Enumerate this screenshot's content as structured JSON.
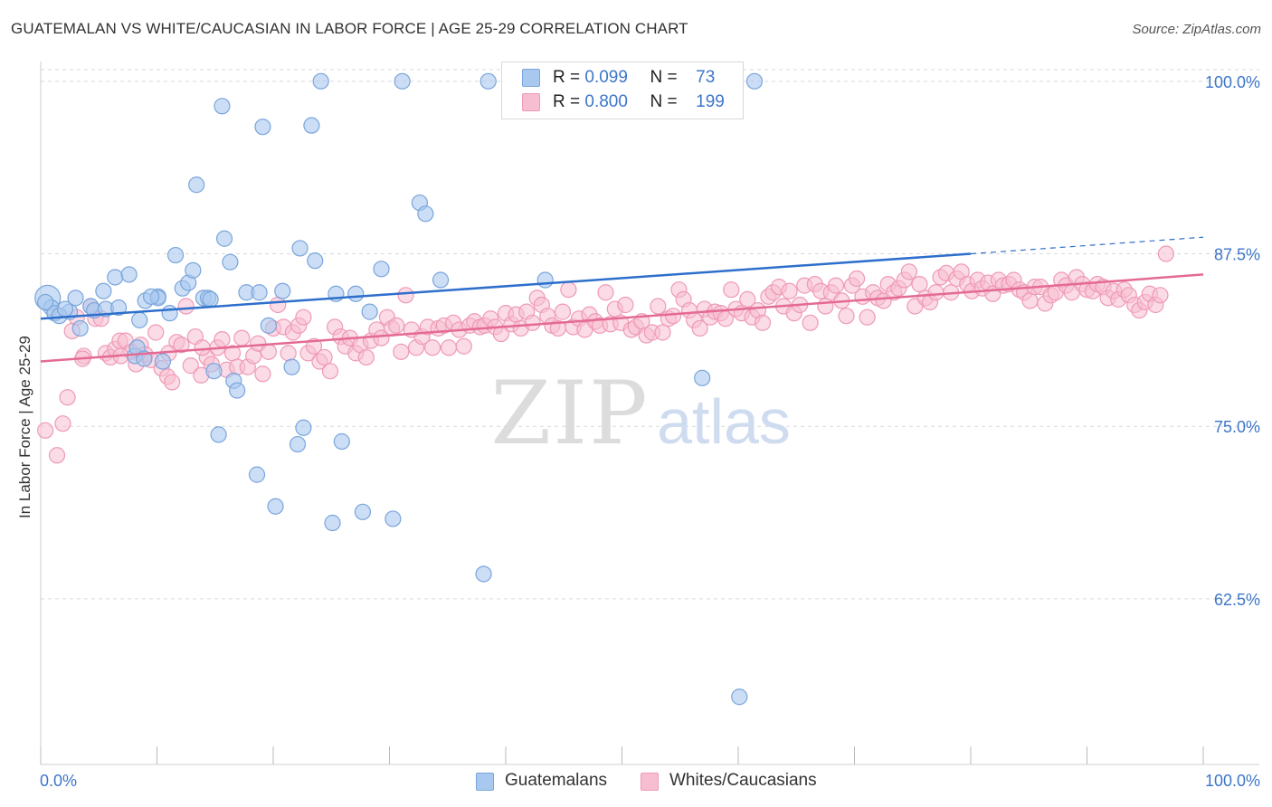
{
  "title": "GUATEMALAN VS WHITE/CAUCASIAN IN LABOR FORCE | AGE 25-29 CORRELATION CHART",
  "source": "Source: ZipAtlas.com",
  "watermark": {
    "zip": "ZIP",
    "atlas": "atlas"
  },
  "legend": {
    "rows": [
      {
        "r_label": "R =",
        "r_value": "0.099",
        "n_label": "N =",
        "n_value": "73"
      },
      {
        "r_label": "R =",
        "r_value": "0.800",
        "n_label": "N =",
        "n_value": "199"
      }
    ]
  },
  "bottom_legend": {
    "series1": "Guatemalans",
    "series2": "Whites/Caucasians"
  },
  "colors": {
    "blue_fill": "#a9c8ef",
    "blue_stroke": "#7aa5dc",
    "blue_line": "#2e6fcc",
    "pink_fill": "#f7bdd0",
    "pink_stroke": "#ee9ab6",
    "pink_line": "#e46a94",
    "tick_label": "#3d76c9",
    "grid": "#d9d9d9"
  },
  "chart_data": {
    "type": "scatter",
    "title": "GUATEMALAN VS WHITE/CAUCASIAN IN LABOR FORCE | AGE 25-29 CORRELATION CHART",
    "xlabel": "",
    "ylabel": "In Labor Force | Age 25-29",
    "xlim": [
      0,
      100
    ],
    "ylim": [
      50.5,
      101.3
    ],
    "x_tick_labels": [
      "0.0%",
      "100.0%"
    ],
    "y_ticks": [
      62.5,
      75.0,
      87.5,
      100.0
    ],
    "y_tick_labels": [
      "62.5%",
      "75.0%",
      "87.5%",
      "100.0%"
    ],
    "grid": true,
    "series": [
      {
        "name": "Guatemalans",
        "r": 0.099,
        "n": 73,
        "trend": {
          "x": [
            0,
            80
          ],
          "y": [
            82.8,
            87.5
          ],
          "dashed_to": [
            100,
            88.7
          ]
        },
        "points": [
          [
            0.6,
            84.3
          ],
          [
            0.9,
            83.6
          ],
          [
            1.2,
            83.2
          ],
          [
            2.5,
            83.3
          ],
          [
            3.0,
            84.3
          ],
          [
            3.4,
            82.1
          ],
          [
            4.3,
            83.7
          ],
          [
            4.6,
            83.4
          ],
          [
            5.4,
            84.8
          ],
          [
            5.6,
            83.5
          ],
          [
            6.4,
            85.8
          ],
          [
            6.7,
            83.6
          ],
          [
            7.6,
            86.0
          ],
          [
            8.1,
            80.1
          ],
          [
            8.3,
            80.7
          ],
          [
            8.5,
            82.7
          ],
          [
            8.9,
            79.9
          ],
          [
            9.0,
            84.1
          ],
          [
            10.1,
            84.4
          ],
          [
            10.1,
            84.3
          ],
          [
            10.5,
            79.7
          ],
          [
            11.1,
            83.2
          ],
          [
            11.6,
            87.4
          ],
          [
            12.2,
            85.0
          ],
          [
            12.7,
            85.4
          ],
          [
            13.1,
            86.3
          ],
          [
            13.4,
            92.5
          ],
          [
            14.0,
            84.3
          ],
          [
            14.4,
            84.3
          ],
          [
            14.9,
            79.0
          ],
          [
            15.3,
            74.4
          ],
          [
            15.6,
            98.2
          ],
          [
            15.8,
            88.6
          ],
          [
            16.3,
            86.9
          ],
          [
            16.6,
            78.3
          ],
          [
            16.9,
            77.6
          ],
          [
            17.7,
            84.7
          ],
          [
            18.6,
            71.5
          ],
          [
            18.8,
            84.7
          ],
          [
            19.1,
            96.7
          ],
          [
            19.6,
            82.3
          ],
          [
            20.2,
            69.2
          ],
          [
            21.6,
            79.3
          ],
          [
            22.1,
            73.7
          ],
          [
            22.3,
            87.9
          ],
          [
            22.6,
            74.9
          ],
          [
            23.6,
            87.0
          ],
          [
            23.3,
            96.8
          ],
          [
            24.1,
            100.0
          ],
          [
            25.1,
            68.0
          ],
          [
            25.4,
            84.6
          ],
          [
            25.9,
            73.9
          ],
          [
            27.1,
            84.6
          ],
          [
            27.7,
            68.8
          ],
          [
            28.3,
            83.3
          ],
          [
            29.3,
            86.4
          ],
          [
            30.3,
            68.3
          ],
          [
            31.1,
            100.0
          ],
          [
            32.6,
            91.2
          ],
          [
            33.1,
            90.4
          ],
          [
            34.4,
            85.6
          ],
          [
            38.1,
            64.3
          ],
          [
            38.5,
            100.0
          ],
          [
            43.4,
            85.6
          ],
          [
            56.9,
            78.5
          ],
          [
            60.1,
            55.4
          ],
          [
            61.4,
            100.0
          ],
          [
            0.4,
            84.0
          ],
          [
            1.6,
            83.0
          ],
          [
            2.1,
            83.5
          ],
          [
            9.5,
            84.4
          ],
          [
            14.6,
            84.2
          ],
          [
            20.8,
            84.8
          ]
        ]
      },
      {
        "name": "Whites/Caucasians",
        "r": 0.8,
        "n": 199,
        "trend": {
          "x": [
            0,
            100
          ],
          "y": [
            79.7,
            86.0
          ]
        },
        "points": [
          [
            0.4,
            74.7
          ],
          [
            1.4,
            72.9
          ],
          [
            1.9,
            75.2
          ],
          [
            2.3,
            77.1
          ],
          [
            2.7,
            81.9
          ],
          [
            3.1,
            82.9
          ],
          [
            3.7,
            80.1
          ],
          [
            4.3,
            83.7
          ],
          [
            4.7,
            82.8
          ],
          [
            5.2,
            82.8
          ],
          [
            5.6,
            80.3
          ],
          [
            6.0,
            80.0
          ],
          [
            6.4,
            80.6
          ],
          [
            6.8,
            81.2
          ],
          [
            7.3,
            81.2
          ],
          [
            7.8,
            80.4
          ],
          [
            8.2,
            79.5
          ],
          [
            8.6,
            80.9
          ],
          [
            9.0,
            80.2
          ],
          [
            9.5,
            79.8
          ],
          [
            9.9,
            81.8
          ],
          [
            10.4,
            79.2
          ],
          [
            10.9,
            78.6
          ],
          [
            11.3,
            78.2
          ],
          [
            11.7,
            81.1
          ],
          [
            12.1,
            80.9
          ],
          [
            12.5,
            83.7
          ],
          [
            12.9,
            79.4
          ],
          [
            13.3,
            81.5
          ],
          [
            13.8,
            78.7
          ],
          [
            14.3,
            80.0
          ],
          [
            14.7,
            79.5
          ],
          [
            15.2,
            80.7
          ],
          [
            15.6,
            81.3
          ],
          [
            16.0,
            79.1
          ],
          [
            16.5,
            80.3
          ],
          [
            16.9,
            79.3
          ],
          [
            17.3,
            81.4
          ],
          [
            17.8,
            79.3
          ],
          [
            18.3,
            80.1
          ],
          [
            18.7,
            81.0
          ],
          [
            19.1,
            78.8
          ],
          [
            19.6,
            80.4
          ],
          [
            20.0,
            82.1
          ],
          [
            20.4,
            83.8
          ],
          [
            20.9,
            82.2
          ],
          [
            21.3,
            80.3
          ],
          [
            21.7,
            81.8
          ],
          [
            22.2,
            82.3
          ],
          [
            22.6,
            82.9
          ],
          [
            23.0,
            80.3
          ],
          [
            23.5,
            80.8
          ],
          [
            24.0,
            79.7
          ],
          [
            24.4,
            80.0
          ],
          [
            24.9,
            79.0
          ],
          [
            25.3,
            82.2
          ],
          [
            25.8,
            81.5
          ],
          [
            26.2,
            80.8
          ],
          [
            26.6,
            81.4
          ],
          [
            27.1,
            80.3
          ],
          [
            27.5,
            80.9
          ],
          [
            28.0,
            80.0
          ],
          [
            28.4,
            81.2
          ],
          [
            28.9,
            82.0
          ],
          [
            29.3,
            81.4
          ],
          [
            29.8,
            82.9
          ],
          [
            30.2,
            82.1
          ],
          [
            30.6,
            82.3
          ],
          [
            31.0,
            80.4
          ],
          [
            31.4,
            84.5
          ],
          [
            31.9,
            82.0
          ],
          [
            32.3,
            80.7
          ],
          [
            32.8,
            81.5
          ],
          [
            33.3,
            82.2
          ],
          [
            33.7,
            80.7
          ],
          [
            34.2,
            82.1
          ],
          [
            34.7,
            82.3
          ],
          [
            35.1,
            80.7
          ],
          [
            35.5,
            82.5
          ],
          [
            36.0,
            82.0
          ],
          [
            36.4,
            80.8
          ],
          [
            36.9,
            82.3
          ],
          [
            37.3,
            82.6
          ],
          [
            37.8,
            82.2
          ],
          [
            38.2,
            82.3
          ],
          [
            38.7,
            82.8
          ],
          [
            39.1,
            82.2
          ],
          [
            39.6,
            81.7
          ],
          [
            40.0,
            83.2
          ],
          [
            40.5,
            82.4
          ],
          [
            40.9,
            83.1
          ],
          [
            41.3,
            82.1
          ],
          [
            41.8,
            83.3
          ],
          [
            42.3,
            82.5
          ],
          [
            42.7,
            84.3
          ],
          [
            43.1,
            83.8
          ],
          [
            43.6,
            83.0
          ],
          [
            44.0,
            82.3
          ],
          [
            44.5,
            82.1
          ],
          [
            44.9,
            83.3
          ],
          [
            45.4,
            84.9
          ],
          [
            45.8,
            82.2
          ],
          [
            46.3,
            82.8
          ],
          [
            46.8,
            82.0
          ],
          [
            47.2,
            83.1
          ],
          [
            47.7,
            82.6
          ],
          [
            48.1,
            82.3
          ],
          [
            48.6,
            84.7
          ],
          [
            49.0,
            82.4
          ],
          [
            49.4,
            83.5
          ],
          [
            49.9,
            82.5
          ],
          [
            50.3,
            83.8
          ],
          [
            50.8,
            82.0
          ],
          [
            51.2,
            82.2
          ],
          [
            51.7,
            82.6
          ],
          [
            52.1,
            81.6
          ],
          [
            52.6,
            81.8
          ],
          [
            53.1,
            83.7
          ],
          [
            53.5,
            81.8
          ],
          [
            54.0,
            82.8
          ],
          [
            54.4,
            83.0
          ],
          [
            54.9,
            84.9
          ],
          [
            55.3,
            84.2
          ],
          [
            55.8,
            83.4
          ],
          [
            56.2,
            82.7
          ],
          [
            56.7,
            82.1
          ],
          [
            57.1,
            83.5
          ],
          [
            57.6,
            82.9
          ],
          [
            58.0,
            83.3
          ],
          [
            58.5,
            83.2
          ],
          [
            58.9,
            82.8
          ],
          [
            59.4,
            84.9
          ],
          [
            59.8,
            83.5
          ],
          [
            60.3,
            83.2
          ],
          [
            60.8,
            84.2
          ],
          [
            61.2,
            82.9
          ],
          [
            61.7,
            83.4
          ],
          [
            62.1,
            82.5
          ],
          [
            62.6,
            84.4
          ],
          [
            63.0,
            84.7
          ],
          [
            63.5,
            85.1
          ],
          [
            63.9,
            83.7
          ],
          [
            64.4,
            84.8
          ],
          [
            64.8,
            83.2
          ],
          [
            65.3,
            83.8
          ],
          [
            65.7,
            85.2
          ],
          [
            66.2,
            82.5
          ],
          [
            66.6,
            85.3
          ],
          [
            67.1,
            84.8
          ],
          [
            67.5,
            83.7
          ],
          [
            68.0,
            84.7
          ],
          [
            68.4,
            85.2
          ],
          [
            68.9,
            84.1
          ],
          [
            69.3,
            83.0
          ],
          [
            69.8,
            85.2
          ],
          [
            70.2,
            85.7
          ],
          [
            70.7,
            84.4
          ],
          [
            71.1,
            82.9
          ],
          [
            71.6,
            84.7
          ],
          [
            72.0,
            84.3
          ],
          [
            72.5,
            84.1
          ],
          [
            72.9,
            85.3
          ],
          [
            73.4,
            84.7
          ],
          [
            73.8,
            85.0
          ],
          [
            74.3,
            85.6
          ],
          [
            74.7,
            86.2
          ],
          [
            75.2,
            83.7
          ],
          [
            75.6,
            85.3
          ],
          [
            76.1,
            84.3
          ],
          [
            76.5,
            84.0
          ],
          [
            77.0,
            84.7
          ],
          [
            77.4,
            85.8
          ],
          [
            77.9,
            86.1
          ],
          [
            78.3,
            84.7
          ],
          [
            78.8,
            85.7
          ],
          [
            79.2,
            86.2
          ],
          [
            79.7,
            85.3
          ],
          [
            80.1,
            84.8
          ],
          [
            80.6,
            85.6
          ],
          [
            81.0,
            85.0
          ],
          [
            81.5,
            85.4
          ],
          [
            81.9,
            84.6
          ],
          [
            82.4,
            85.6
          ],
          [
            82.8,
            85.2
          ],
          [
            83.3,
            85.3
          ],
          [
            83.7,
            85.6
          ],
          [
            84.2,
            84.9
          ],
          [
            84.6,
            84.7
          ],
          [
            85.1,
            84.1
          ],
          [
            85.5,
            85.1
          ],
          [
            86.0,
            85.1
          ],
          [
            86.4,
            83.9
          ],
          [
            86.9,
            84.5
          ],
          [
            87.3,
            84.7
          ],
          [
            87.8,
            85.6
          ],
          [
            88.2,
            85.2
          ],
          [
            88.7,
            84.7
          ],
          [
            89.1,
            85.8
          ],
          [
            89.6,
            85.3
          ],
          [
            90.0,
            84.9
          ],
          [
            90.5,
            84.8
          ],
          [
            90.9,
            85.3
          ],
          [
            91.4,
            85.1
          ],
          [
            91.8,
            84.3
          ],
          [
            92.3,
            84.8
          ],
          [
            92.7,
            84.2
          ],
          [
            93.2,
            84.9
          ],
          [
            93.6,
            84.5
          ],
          [
            94.1,
            83.8
          ],
          [
            94.5,
            83.4
          ],
          [
            95.0,
            84.0
          ],
          [
            95.4,
            84.6
          ],
          [
            95.9,
            83.8
          ],
          [
            96.3,
            84.5
          ],
          [
            96.8,
            87.5
          ],
          [
            3.6,
            79.9
          ],
          [
            6.9,
            80.1
          ],
          [
            11.0,
            80.3
          ],
          [
            13.9,
            80.7
          ]
        ]
      }
    ]
  }
}
